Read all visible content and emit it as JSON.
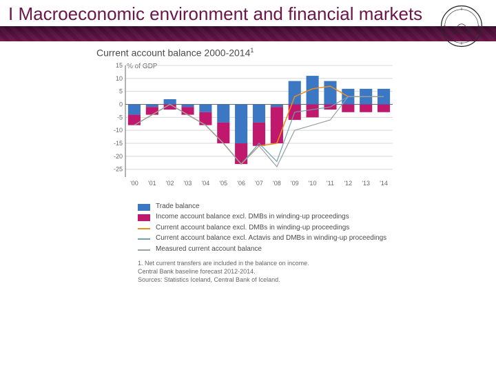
{
  "header": {
    "title": "I Macroeconomic environment and financial markets",
    "band_color_top": "#3b0a2e",
    "band_color_bottom": "#6b1548",
    "seal_stroke": "#2a2a2a"
  },
  "chart": {
    "title": "Current account balance 2000-2014",
    "title_super": "1",
    "ylabel": "% of GDP",
    "type": "stacked-bar-with-lines",
    "background_color": "#ffffff",
    "grid_color": "#d8d8d8",
    "axis_color": "#666666",
    "tick_fontsize": 9,
    "label_fontsize": 10,
    "title_fontsize": 14,
    "xlim": [
      2000,
      2014
    ],
    "ylim": [
      -28,
      15
    ],
    "yticks": [
      -25,
      -20,
      -15,
      -10,
      -5,
      0,
      5,
      10,
      15
    ],
    "xticks": [
      "'00",
      "'01",
      "'02",
      "'03",
      "'04",
      "'05",
      "'06",
      "'07",
      "'08",
      "'09",
      "'10",
      "'11",
      "'12",
      "'13",
      "'14"
    ],
    "bar_width": 0.7,
    "series": {
      "trade_balance": {
        "label": "Trade balance",
        "color": "#3b77c2",
        "values": [
          -4,
          -1,
          2,
          -1,
          -3,
          -7,
          -15,
          -7,
          -1,
          9,
          11,
          9,
          6,
          6,
          6
        ]
      },
      "income_balance": {
        "label": "Income account balance excl. DMBs in winding-up proceedings",
        "color": "#c0186c",
        "values": [
          -4,
          -3,
          -2,
          -3,
          -5,
          -8,
          -8,
          -9,
          -14,
          -6,
          -5,
          -2,
          -3,
          -3,
          -3
        ]
      },
      "cab_excl_dmb": {
        "label": "Current account balance excl. DMBs in winding-up proceedings",
        "color": "#e98f1e",
        "style": "line",
        "width": 1.5,
        "values": [
          -8,
          -4,
          0,
          -4,
          -8,
          -15,
          -23,
          -16,
          -15,
          3,
          6,
          7,
          3,
          3,
          3
        ]
      },
      "cab_excl_actavis_dmb": {
        "label": "Current account balance excl. Actavis and DMBs in winding-up proceedings",
        "color": "#6f9fae",
        "style": "line",
        "width": 1.2,
        "values": [
          -8,
          -4,
          0,
          -4,
          -8,
          -15,
          -23,
          -15,
          -22,
          -3,
          -2,
          -1,
          3,
          3,
          3
        ]
      },
      "measured_cab": {
        "label": "Measured current account balance",
        "color": "#9aa0a6",
        "style": "line",
        "width": 1.2,
        "values": [
          -8,
          -4,
          0,
          -4,
          -8,
          -15,
          -23,
          -16,
          -24,
          -10,
          -8,
          -6,
          3,
          3,
          3
        ]
      }
    },
    "legend_order": [
      "trade_balance",
      "income_balance",
      "cab_excl_dmb",
      "cab_excl_actavis_dmb",
      "measured_cab"
    ]
  },
  "footnotes": {
    "note1": "1. Net current transfers are included in the balance on income.",
    "note2": "Central Bank baseline forecast 2012-2014.",
    "sources": "Sources: Statistics Iceland, Central Bank of Iceland."
  }
}
